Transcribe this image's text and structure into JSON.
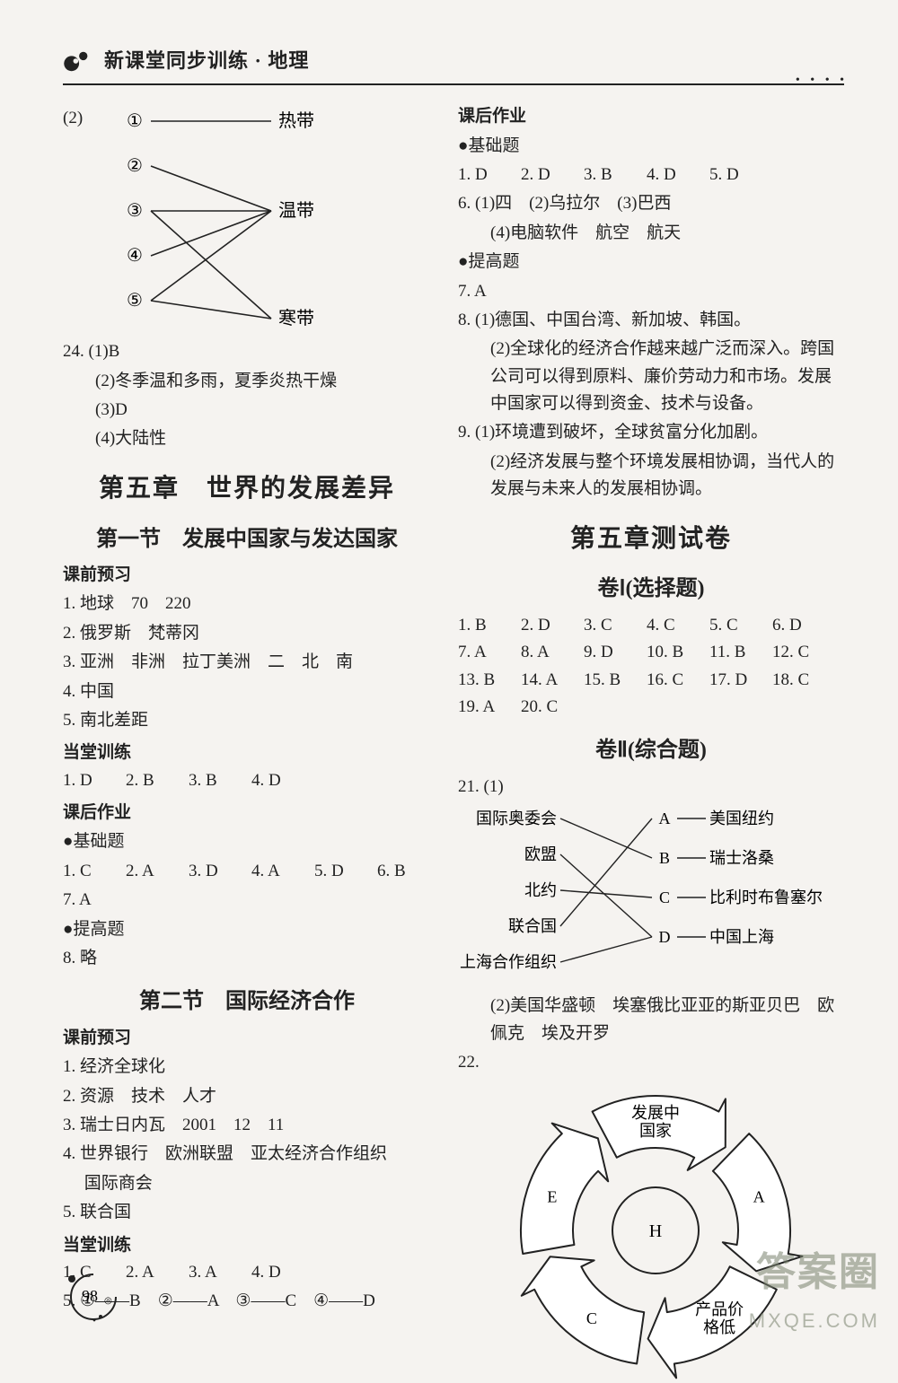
{
  "header": {
    "title": "新课堂同步训练 · 地理"
  },
  "page_number": "98",
  "watermark": {
    "top": "答案圈",
    "bottom": "MXQE.COM"
  },
  "diagram1": {
    "left_labels": [
      "①",
      "②",
      "③",
      "④",
      "⑤"
    ],
    "right_labels": [
      "热带",
      "温带",
      "寒带"
    ],
    "edges": [
      [
        0,
        0
      ],
      [
        1,
        1
      ],
      [
        2,
        2
      ],
      [
        3,
        1
      ],
      [
        4,
        2
      ],
      [
        2,
        1
      ],
      [
        4,
        1
      ]
    ],
    "line_color": "#222",
    "node_font": 20,
    "prefix": "(2)"
  },
  "q24": {
    "num": "24.",
    "a1": "(1)B",
    "a2": "(2)冬季温和多雨，夏季炎热干燥",
    "a3": "(3)D",
    "a4": "(4)大陆性"
  },
  "ch5_title": "第五章　世界的发展差异",
  "sec1": {
    "title": "第一节　发展中国家与发达国家",
    "preview_label": "课前预习",
    "p1": "1. 地球　70　220",
    "p2": "2. 俄罗斯　梵蒂冈",
    "p3": "3. 亚洲　非洲　拉丁美洲　二　北　南",
    "p4": "4. 中国",
    "p5": "5. 南北差距",
    "inclass_label": "当堂训练",
    "inclass": [
      "1. D",
      "2. B",
      "3. B",
      "4. D"
    ],
    "hw_label": "课后作业",
    "base_label": "●基础题",
    "base_row": [
      "1. C",
      "2. A",
      "3. D",
      "4. A",
      "5. D",
      "6. B"
    ],
    "base7": "7. A",
    "adv_label": "●提高题",
    "adv8": "8. 略"
  },
  "sec2": {
    "title": "第二节　国际经济合作",
    "preview_label": "课前预习",
    "p1": "1. 经济全球化",
    "p2": "2. 资源　技术　人才",
    "p3": "3. 瑞士日内瓦　2001　12　11",
    "p4": "4. 世界银行　欧洲联盟　亚太经济合作组织",
    "p4b": "　 国际商会",
    "p5": "5. 联合国",
    "inclass_label": "当堂训练",
    "inclass": [
      "1. C",
      "2. A",
      "3. A",
      "4. D"
    ],
    "match": "5. ①——B　②——A　③——C　④——D"
  },
  "right": {
    "hw_label": "课后作业",
    "base_label": "●基础题",
    "base_row": [
      "1. D",
      "2. D",
      "3. B",
      "4. D",
      "5. D"
    ],
    "q6": "6. (1)四　(2)乌拉尔　(3)巴西",
    "q6b": "(4)电脑软件　航空　航天",
    "adv_label": "●提高题",
    "q7": "7. A",
    "q8a": "8. (1)德国、中国台湾、新加坡、韩国。",
    "q8b": "(2)全球化的经济合作越来越广泛而深入。跨国公司可以得到原料、廉价劳动力和市场。发展中国家可以得到资金、技术与设备。",
    "q9a": "9. (1)环境遭到破坏，全球贫富分化加剧。",
    "q9b": "(2)经济发展与整个环境发展相协调，当代人的发展与未来人的发展相协调。"
  },
  "test": {
    "title": "第五章测试卷",
    "part1": "卷Ⅰ(选择题)",
    "answers": [
      [
        "1. B",
        "2. D",
        "3. C",
        "4. C",
        "5. C",
        "6. D"
      ],
      [
        "7. A",
        "8. A",
        "9. D",
        "10. B",
        "11. B",
        "12. C"
      ],
      [
        "13. B",
        "14. A",
        "15. B",
        "16. C",
        "17. D",
        "18. C"
      ],
      [
        "19. A",
        "20. C"
      ]
    ],
    "part2": "卷Ⅱ(综合题)",
    "q21label": "21. (1)",
    "diagram2": {
      "left": [
        "国际奥委会",
        "欧盟",
        "北约",
        "联合国",
        "上海合作组织"
      ],
      "mid": [
        "A",
        "B",
        "C",
        "D"
      ],
      "right": [
        "美国纽约",
        "瑞士洛桑",
        "比利时布鲁塞尔",
        "中国上海"
      ],
      "edges_lm": [
        [
          0,
          1
        ],
        [
          1,
          3
        ],
        [
          2,
          2
        ],
        [
          3,
          0
        ],
        [
          4,
          3
        ]
      ],
      "edges_mr": [
        [
          0,
          0
        ],
        [
          1,
          1
        ],
        [
          2,
          2
        ],
        [
          3,
          3
        ]
      ],
      "color": "#222"
    },
    "q21b": "(2)美国华盛顿　埃塞俄比亚亚的斯亚贝巴　欧佩克　埃及开罗",
    "q22label": "22.",
    "cycle": {
      "labels": [
        "发展中\n国家",
        "A",
        "产品价\n格低",
        "C",
        "E"
      ],
      "center": "H",
      "stroke": "#222",
      "fill": "#fff"
    }
  }
}
